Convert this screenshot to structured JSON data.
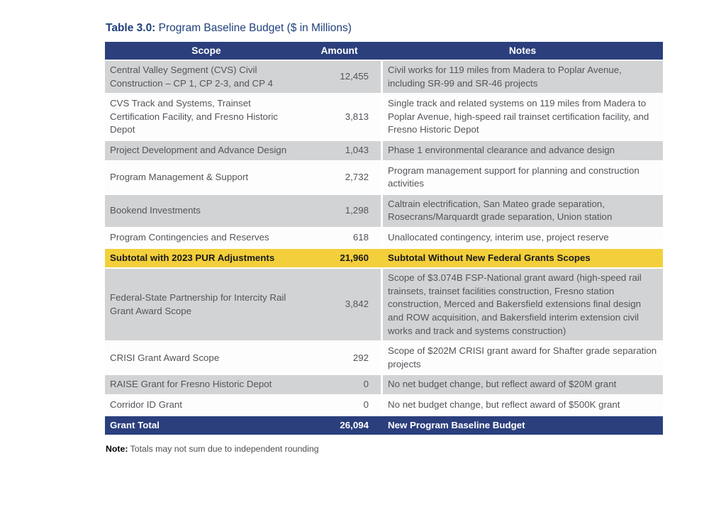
{
  "title": {
    "label": "Table 3.0:",
    "caption": " Program Baseline Budget ($ in Millions)"
  },
  "table": {
    "headers": [
      "Scope",
      "Amount",
      "Notes"
    ],
    "rows": [
      {
        "style": "gray",
        "scope": "Central Valley Segment (CVS) Civil Construction – CP 1, CP 2-3, and CP 4",
        "amount": "12,455",
        "notes": "Civil works for 119 miles from Madera to Poplar Avenue, including SR-99 and SR-46 projects"
      },
      {
        "style": "white",
        "scope": "CVS Track and Systems, Trainset Certification Facility, and Fresno Historic Depot",
        "amount": "3,813",
        "notes": "Single track and related systems on 119 miles from Madera to Poplar Avenue, high-speed rail trainset certification facility, and Fresno Historic Depot"
      },
      {
        "style": "gray",
        "scope": "Project Development and Advance Design",
        "amount": "1,043",
        "notes": "Phase 1 environmental clearance and advance design"
      },
      {
        "style": "white",
        "scope": "Program Management & Support",
        "amount": "2,732",
        "notes": "Program management support for planning and construction activities"
      },
      {
        "style": "gray",
        "scope": "Bookend Investments",
        "amount": "1,298",
        "notes": "Caltrain electrification, San Mateo grade separation, Rosecrans/Marquardt grade separation, Union station"
      },
      {
        "style": "white",
        "scope": "Program Contingencies and Reserves",
        "amount": "618",
        "notes": "Unallocated contingency, interim use, project reserve"
      },
      {
        "style": "yellow",
        "scope": "Subtotal with 2023 PUR Adjustments",
        "amount": "21,960",
        "notes": "Subtotal Without New Federal Grants Scopes"
      },
      {
        "style": "gray",
        "scope": "Federal-State Partnership for Intercity Rail Grant Award Scope",
        "amount": "3,842",
        "notes": "Scope of $3.074B FSP-National grant award (high-speed rail trainsets, trainset facilities construction, Fresno station construction, Merced and Bakersfield extensions final design and ROW acquisition, and Bakersfield interim extension civil works and track and systems construction)"
      },
      {
        "style": "white",
        "scope": "CRISI Grant Award Scope",
        "amount": "292",
        "notes": "Scope of $202M CRISI grant award for Shafter grade separation projects"
      },
      {
        "style": "gray",
        "scope": "RAISE Grant for Fresno Historic Depot",
        "amount": "0",
        "notes": "No net budget change, but reflect award of $20M grant"
      },
      {
        "style": "white",
        "scope": "Corridor ID Grant",
        "amount": "0",
        "notes": "No net budget change, but reflect award of $500K grant"
      },
      {
        "style": "navy",
        "scope": "Grant Total",
        "amount": "26,094",
        "notes": "New Program Baseline Budget"
      }
    ]
  },
  "footnote": {
    "label": "Note:",
    "text": " Totals may not sum due to independent rounding"
  },
  "colors": {
    "header_navy": "#2B3F7D",
    "row_gray": "#D2D3D5",
    "row_yellow": "#F3CF3B",
    "title_blue": "#21417C",
    "body_text": "#54555A"
  }
}
